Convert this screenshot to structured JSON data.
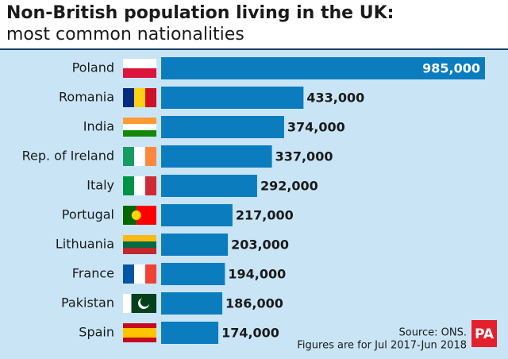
{
  "chart_data": {
    "type": "bar",
    "orientation": "horizontal",
    "title": "Non-British population living in the UK:",
    "subtitle": "most common nationalities",
    "categories": [
      "Poland",
      "Romania",
      "India",
      "Rep. of Ireland",
      "Italy",
      "Portugal",
      "Lithuania",
      "France",
      "Pakistan",
      "Spain"
    ],
    "values": [
      985000,
      433000,
      374000,
      337000,
      292000,
      217000,
      203000,
      194000,
      186000,
      174000
    ],
    "value_labels": [
      "985,000",
      "433,000",
      "374,000",
      "337,000",
      "292,000",
      "217,000",
      "203,000",
      "194,000",
      "186,000",
      "174,000"
    ],
    "color": "#0b7dbf",
    "source": "Source: ONS.",
    "note": "Figures are for Jul 2017-Jun 2018",
    "logo": "PA"
  }
}
